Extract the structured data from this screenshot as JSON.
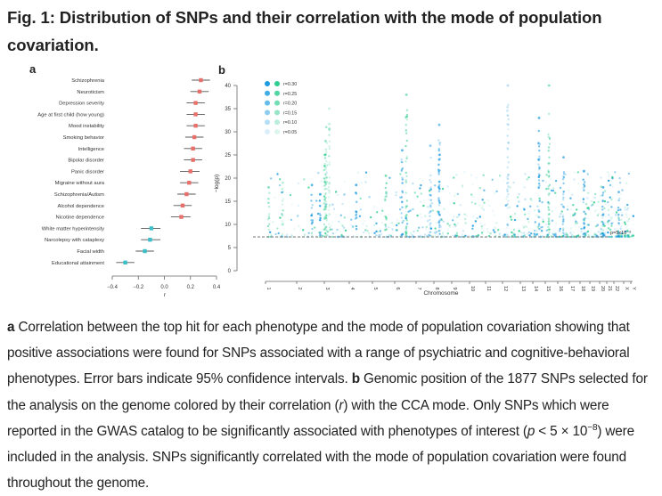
{
  "figure": {
    "title": "Fig. 1: Distribution of SNPs and their correlation with the mode of population covariation."
  },
  "caption": {
    "a_label": "a",
    "a_text": " Correlation between the top hit for each phenotype and the mode of population covariation showing that positive associations were found for SNPs associated with a range of psychiatric and cognitive-behavioral phenotypes. Error bars indicate 95% confidence intervals. ",
    "b_label": "b",
    "b_text_1": " Genomic position of the 1877 SNPs selected for the analysis on the genome colored by their correlation (",
    "b_r": "r",
    "b_text_2": ") with the CCA mode. Only SNPs which were reported in the GWAS catalog to be significantly associated with phenotypes of interest (",
    "b_p": "p",
    "b_text_3": " < 5 × 10",
    "b_exp": "−8",
    "b_text_4": ") were included in the analysis. SNPs significantly correlated with the mode of population covariation were found throughout the genome."
  },
  "colors": {
    "positive": "#e8706a",
    "negative": "#3bbfc9",
    "errorbar": "#555555",
    "snp_blue": "#1e9be0",
    "snp_green": "#2ecc8e",
    "threshold": "#999999",
    "axis": "#666666"
  },
  "chart_data": [
    {
      "panel": "a",
      "type": "scatter",
      "panel_label": "a",
      "title": "",
      "xlabel": "r",
      "ylabel": "",
      "xlim": [
        -0.4,
        0.4
      ],
      "xticks": [
        -0.4,
        -0.2,
        0.0,
        0.2,
        0.4
      ],
      "xtick_labels": [
        "−0.4",
        "−0.2",
        "0.0",
        "0.2",
        "0.4"
      ],
      "error_bars": "95% CI",
      "categories": [
        "Schizophrenia",
        "Neuroticism",
        "Depression severity",
        "Age at first child (how young)",
        "Mood instability",
        "Smoking behavior",
        "Intelligence",
        "Bipolar disorder",
        "Panic disorder",
        "Migraine without aura",
        "Schizophrenia/Autism",
        "Alcohol dependence",
        "Nicotine dependence",
        "White matter hyperintensity",
        "Narcolepsy with cataplexy",
        "Facial width",
        "Educational attainment"
      ],
      "values": [
        0.28,
        0.27,
        0.24,
        0.24,
        0.24,
        0.23,
        0.22,
        0.22,
        0.2,
        0.19,
        0.17,
        0.14,
        0.13,
        -0.1,
        -0.11,
        -0.15,
        -0.3
      ],
      "ci_low": [
        0.21,
        0.2,
        0.17,
        0.17,
        0.17,
        0.16,
        0.15,
        0.15,
        0.12,
        0.12,
        0.1,
        0.07,
        0.05,
        -0.18,
        -0.18,
        -0.22,
        -0.37
      ],
      "ci_high": [
        0.35,
        0.34,
        0.31,
        0.31,
        0.31,
        0.3,
        0.29,
        0.29,
        0.27,
        0.26,
        0.24,
        0.21,
        0.2,
        -0.03,
        -0.03,
        -0.08,
        -0.23
      ]
    },
    {
      "panel": "b",
      "type": "scatter",
      "panel_label": "b",
      "title": "",
      "xlabel": "Chromosome",
      "ylabel": "−log(p)",
      "ylim": [
        0,
        40
      ],
      "yticks": [
        0,
        5,
        10,
        15,
        20,
        25,
        30,
        35,
        40
      ],
      "chromosomes": [
        "1",
        "2",
        "3",
        "4",
        "5",
        "6",
        "7",
        "8",
        "9",
        "10",
        "11",
        "12",
        "13",
        "14",
        "15",
        "16",
        "17",
        "18",
        "19",
        "20",
        "21",
        "22",
        "X",
        "Y"
      ],
      "chromosome_sizes_mb": [
        249,
        243,
        198,
        190,
        181,
        171,
        159,
        145,
        138,
        134,
        135,
        133,
        114,
        107,
        102,
        90,
        83,
        80,
        59,
        64,
        47,
        51,
        155,
        57
      ],
      "n_snps": 1877,
      "threshold": {
        "value": 7.3,
        "label": "p=5x10⁻⁸"
      },
      "legend": {
        "placement": "top-left",
        "entries": [
          "r=0.30",
          "r=0.25",
          "r=0.20",
          "r=0.15",
          "r=0.10",
          "r=0.05"
        ],
        "r_values": [
          0.3,
          0.25,
          0.2,
          0.15,
          0.1,
          0.05
        ]
      },
      "peaks": [
        {
          "chr": "1",
          "pos": 0.1,
          "neglogp": 18,
          "r": 0.18,
          "sign": "green"
        },
        {
          "chr": "1",
          "pos": 0.55,
          "neglogp": 19,
          "r": 0.1,
          "sign": "green"
        },
        {
          "chr": "2",
          "pos": 0.55,
          "neglogp": 18.5,
          "r": 0.22,
          "sign": "blue"
        },
        {
          "chr": "2",
          "pos": 0.85,
          "neglogp": 16.5,
          "r": 0.25,
          "sign": "blue"
        },
        {
          "chr": "3",
          "pos": 0.02,
          "neglogp": 25,
          "r": 0.2,
          "sign": "green"
        },
        {
          "chr": "3",
          "pos": 0.05,
          "neglogp": 28,
          "r": 0.15,
          "sign": "green"
        },
        {
          "chr": "3",
          "pos": 0.08,
          "neglogp": 31,
          "r": 0.12,
          "sign": "green"
        },
        {
          "chr": "3",
          "pos": 0.2,
          "neglogp": 35,
          "r": 0.08,
          "sign": "green"
        },
        {
          "chr": "4",
          "pos": 0.3,
          "neglogp": 18.5,
          "r": 0.24,
          "sign": "blue"
        },
        {
          "chr": "5",
          "pos": 0.6,
          "neglogp": 20.5,
          "r": 0.2,
          "sign": "green"
        },
        {
          "chr": "6",
          "pos": 0.35,
          "neglogp": 26,
          "r": 0.22,
          "sign": "blue"
        },
        {
          "chr": "6",
          "pos": 0.55,
          "neglogp": 38,
          "r": 0.18,
          "sign": "green"
        },
        {
          "chr": "7",
          "pos": 0.8,
          "neglogp": 27,
          "r": 0.15,
          "sign": "blue"
        },
        {
          "chr": "8",
          "pos": 0.3,
          "neglogp": 31.5,
          "r": 0.18,
          "sign": "blue"
        },
        {
          "chr": "8",
          "pos": 0.3,
          "neglogp": 24,
          "r": 0.22,
          "sign": "blue"
        },
        {
          "chr": "12",
          "pos": 0.3,
          "neglogp": 40,
          "r": 0.1,
          "sign": "blue"
        },
        {
          "chr": "14",
          "pos": 0.5,
          "neglogp": 33,
          "r": 0.22,
          "sign": "blue"
        },
        {
          "chr": "15",
          "pos": 0.3,
          "neglogp": 40,
          "r": 0.18,
          "sign": "green"
        },
        {
          "chr": "16",
          "pos": 0.5,
          "neglogp": 24.5,
          "r": 0.2,
          "sign": "blue"
        },
        {
          "chr": "18",
          "pos": 0.4,
          "neglogp": 21.5,
          "r": 0.24,
          "sign": "blue"
        },
        {
          "chr": "20",
          "pos": 0.5,
          "neglogp": 18,
          "r": 0.22,
          "sign": "blue"
        },
        {
          "chr": "22",
          "pos": 0.5,
          "neglogp": 17,
          "r": 0.2,
          "sign": "blue"
        }
      ]
    }
  ]
}
